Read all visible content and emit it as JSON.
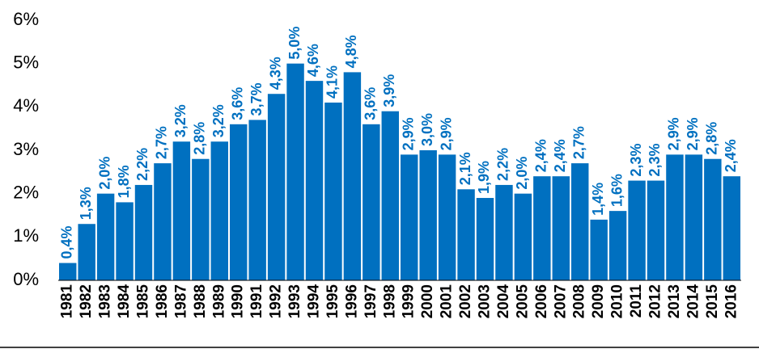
{
  "chart_data": {
    "type": "bar",
    "categories": [
      "1981",
      "1982",
      "1983",
      "1984",
      "1985",
      "1986",
      "1987",
      "1988",
      "1989",
      "1990",
      "1991",
      "1992",
      "1993",
      "1994",
      "1995",
      "1996",
      "1997",
      "1998",
      "1999",
      "2000",
      "2001",
      "2002",
      "2003",
      "2004",
      "2005",
      "2006",
      "2007",
      "2008",
      "2009",
      "2010",
      "2011",
      "2012",
      "2013",
      "2014",
      "2015",
      "2016"
    ],
    "values": [
      0.4,
      1.3,
      2.0,
      1.8,
      2.2,
      2.7,
      3.2,
      2.8,
      3.2,
      3.6,
      3.7,
      4.3,
      5.0,
      4.6,
      4.1,
      4.8,
      3.6,
      3.9,
      2.9,
      3.0,
      2.9,
      2.1,
      1.9,
      2.2,
      2.0,
      2.4,
      2.4,
      2.7,
      1.4,
      1.6,
      2.3,
      2.3,
      2.9,
      2.9,
      2.8,
      2.4
    ],
    "value_labels": [
      "0,4%",
      "1,3%",
      "2,0%",
      "1,8%",
      "2,2%",
      "2,7%",
      "3,2%",
      "2,8%",
      "3,2%",
      "3,6%",
      "3,7%",
      "4,3%",
      "5,0%",
      "4,6%",
      "4,1%",
      "4,8%",
      "3,6%",
      "3,9%",
      "2,9%",
      "3,0%",
      "2,9%",
      "2,1%",
      "1,9%",
      "2,2%",
      "2,0%",
      "2,4%",
      "2,4%",
      "2,7%",
      "1,4%",
      "1,6%",
      "2,3%",
      "2,3%",
      "2,9%",
      "2,9%",
      "2,8%",
      "2,4%"
    ],
    "color": "#0070c0",
    "ylim": [
      0,
      6
    ],
    "yticks": [
      {
        "value": 0,
        "label": "0%"
      },
      {
        "value": 1,
        "label": "1%"
      },
      {
        "value": 2,
        "label": "2%"
      },
      {
        "value": 3,
        "label": "3%"
      },
      {
        "value": 4,
        "label": "4%"
      },
      {
        "value": 5,
        "label": "5%"
      },
      {
        "value": 6,
        "label": "6%"
      }
    ],
    "grid": false
  }
}
